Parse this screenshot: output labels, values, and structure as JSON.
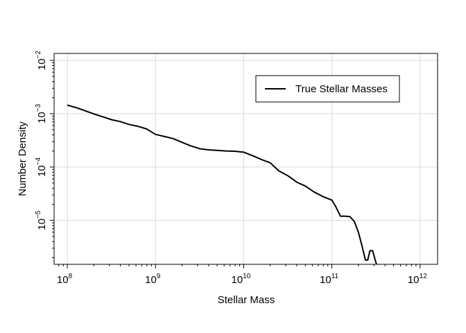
{
  "chart_data": {
    "type": "line",
    "title": "",
    "xlabel": "Stellar Mass",
    "ylabel": "Number Density",
    "x_scale": "log",
    "y_scale": "log",
    "xlim": [
      70800000.0,
      1580000000000.0
    ],
    "ylim": [
      1.5e-06,
      0.0135
    ],
    "grid": true,
    "legend_position": "top-right",
    "x_ticks": [
      {
        "value": 100000000.0,
        "base": "10",
        "exp": "8"
      },
      {
        "value": 1000000000.0,
        "base": "10",
        "exp": "9"
      },
      {
        "value": 10000000000.0,
        "base": "10",
        "exp": "10"
      },
      {
        "value": 100000000000.0,
        "base": "10",
        "exp": "11"
      },
      {
        "value": 1000000000000.0,
        "base": "10",
        "exp": "12"
      }
    ],
    "y_ticks": [
      {
        "value": 1e-05,
        "base": "10",
        "exp": "−5"
      },
      {
        "value": 0.0001,
        "base": "10",
        "exp": "−4"
      },
      {
        "value": 0.001,
        "base": "10",
        "exp": "−3"
      },
      {
        "value": 0.01,
        "base": "10",
        "exp": "−2"
      }
    ],
    "series": [
      {
        "name": "True Stellar Masses",
        "color": "#000000",
        "x": [
          100000000.0,
          130000000.0,
          160000000.0,
          200000000.0,
          250000000.0,
          320000000.0,
          400000000.0,
          500000000.0,
          630000000.0,
          790000000.0,
          1000000000.0,
          1300000000.0,
          1600000000.0,
          2000000000.0,
          2500000000.0,
          3200000000.0,
          4000000000.0,
          5000000000.0,
          6300000000.0,
          7900000000.0,
          10000000000.0,
          13000000000.0,
          16000000000.0,
          20000000000.0,
          25000000000.0,
          32000000000.0,
          40000000000.0,
          50000000000.0,
          63000000000.0,
          79000000000.0,
          100000000000.0,
          110000000000.0,
          125000000000.0,
          140000000000.0,
          160000000000.0,
          180000000000.0,
          200000000000.0,
          220000000000.0,
          240000000000.0,
          255000000000.0,
          270000000000.0,
          290000000000.0,
          310000000000.0,
          330000000000.0
        ],
        "y": [
          0.00145,
          0.00128,
          0.00113,
          0.00099,
          0.00088,
          0.00077,
          0.00071,
          0.00063,
          0.00058,
          0.00052,
          0.00041,
          0.00037,
          0.00034,
          0.00029,
          0.00025,
          0.00022,
          0.00021,
          0.000205,
          0.0002,
          0.000198,
          0.00019,
          0.00016,
          0.000138,
          0.00012,
          8.5e-05,
          6.8e-05,
          5.2e-05,
          4.4e-05,
          3.4e-05,
          2.8e-05,
          2.4e-05,
          1.85e-05,
          1.2e-05,
          1.2e-05,
          1.18e-05,
          9.5e-06,
          6e-06,
          3.3e-06,
          1.8e-06,
          1.8e-06,
          2.7e-06,
          2.7e-06,
          1.8e-06,
          1.3e-06
        ]
      }
    ]
  }
}
